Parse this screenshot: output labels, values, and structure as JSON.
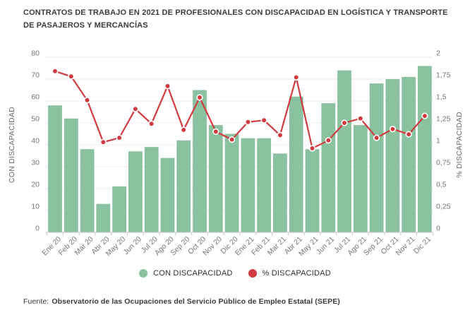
{
  "title": "CONTRATOS DE TRABAJO EN 2021 DE PROFESIONALES CON DISCAPACIDAD EN LOGÍSTICA Y TRANSPORTE DE PASAJEROS Y MERCANCÍAS",
  "footer": {
    "prefix": "Fuente:",
    "text": "Observatorio de las Ocupaciones del Servicio Público de Empleo Estatal (SEPE)"
  },
  "legend": [
    {
      "label": "CON DISCAPACIDAD",
      "color": "#8ac1a1",
      "marker": "circle"
    },
    {
      "label": "% DISCAPACIDAD",
      "color": "#d13b40",
      "marker": "circle"
    }
  ],
  "colors": {
    "bar": "#8ac1a1",
    "line": "#d13b40",
    "marker_ring": "#ffffff",
    "grid": "#ebebeb",
    "axis_line": "#c8c8c8",
    "tick_label": "#757575",
    "axis_title": "#6a6a6a",
    "title_text": "#3b3b3b",
    "background": "#ffffff"
  },
  "chart_data": {
    "type": "bar",
    "subtype": "bar+line combo, dual axis",
    "grid": true,
    "legend_position": "bottom",
    "categories": [
      "Ene 20",
      "Feb 20",
      "Mar 20",
      "Abr 20",
      "May 20",
      "Jun 20",
      "Jul 20",
      "Ago 20",
      "Sep 20",
      "Oct 20",
      "Nov 20",
      "Dic 20",
      "Ene 21",
      "Feb 21",
      "Mar 21",
      "Abr 21",
      "May 21",
      "Jun 21",
      "Jul 21",
      "Ago 21",
      "Sep 21",
      "Oct 21",
      "Nov 21",
      "Dic 21"
    ],
    "series": [
      {
        "name": "CON DISCAPACIDAD",
        "type": "bar",
        "axis": "left",
        "color": "#8ac1a1",
        "values": [
          58,
          52,
          38,
          13,
          21,
          37,
          39,
          34,
          42,
          65,
          49,
          45,
          43,
          43,
          36,
          62,
          38,
          59,
          74,
          49,
          68,
          70,
          71,
          76
        ]
      },
      {
        "name": "% DISCAPACIDAD",
        "type": "line",
        "axis": "right",
        "color": "#d13b40",
        "values": [
          1.84,
          1.78,
          1.51,
          1.03,
          1.08,
          1.41,
          1.24,
          1.67,
          1.17,
          1.54,
          1.15,
          1.06,
          1.26,
          1.28,
          1.11,
          1.77,
          0.96,
          1.05,
          1.25,
          1.3,
          1.08,
          1.18,
          1.12,
          1.33
        ]
      }
    ],
    "left_axis": {
      "title": "CON DISCAPACIDAD",
      "min": 0,
      "max": 80,
      "ticks": [
        {
          "label": "80",
          "value": 80
        },
        {
          "label": "70",
          "value": 70
        },
        {
          "label": "60",
          "value": 60
        },
        {
          "label": "50",
          "value": 50
        },
        {
          "label": "40",
          "value": 40
        },
        {
          "label": "30",
          "value": 30
        },
        {
          "label": "20",
          "value": 20
        },
        {
          "label": "10",
          "value": 10
        },
        {
          "label": "0",
          "value": 0
        }
      ]
    },
    "right_axis": {
      "title": "% DISCAPACIDAD",
      "min": 0,
      "max": 2,
      "ticks": [
        {
          "label": "2",
          "value": 2
        },
        {
          "label": "1,75",
          "value": 1.75
        },
        {
          "label": "1,5",
          "value": 1.5
        },
        {
          "label": "1,25",
          "value": 1.25
        },
        {
          "label": "1",
          "value": 1
        },
        {
          "label": "0,75",
          "value": 0.75
        },
        {
          "label": "0,5",
          "value": 0.5
        },
        {
          "label": "0,25",
          "value": 0.25
        },
        {
          "label": "0",
          "value": 0
        }
      ]
    }
  }
}
